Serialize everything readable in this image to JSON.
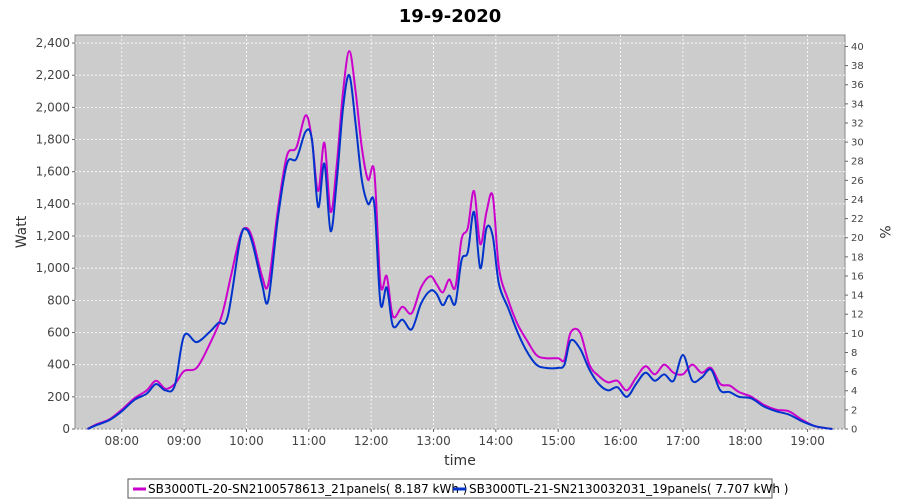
{
  "chart_data": {
    "type": "line",
    "title": "19-9-2020",
    "xlabel": "time",
    "ylabel": "Watt",
    "y2label": "%",
    "xlim": [
      7.25,
      19.6
    ],
    "ylim": [
      0,
      2450
    ],
    "y2lim": [
      0,
      41.2
    ],
    "x_tick_labels": [
      "08:00",
      "09:00",
      "10:00",
      "11:00",
      "12:00",
      "13:00",
      "14:00",
      "15:00",
      "16:00",
      "17:00",
      "18:00",
      "19:00"
    ],
    "y_tick_labels": [
      "0",
      "200",
      "400",
      "600",
      "800",
      "1,000",
      "1,200",
      "1,400",
      "1,600",
      "1,800",
      "2,000",
      "2,200",
      "2,400"
    ],
    "y2_tick_labels": [
      "0",
      "2",
      "4",
      "6",
      "8",
      "10",
      "12",
      "14",
      "16",
      "18",
      "20",
      "22",
      "24",
      "26",
      "28",
      "30",
      "32",
      "34",
      "36",
      "38",
      "40"
    ],
    "grid": true,
    "background": "#cccccc",
    "legend_position": "bottom",
    "series": [
      {
        "name": "SB3000TL-20-SN2100578613_21panels( 8.187 kWh )",
        "color": "#cc00cc",
        "x": [
          7.45,
          7.6,
          7.8,
          8.0,
          8.2,
          8.4,
          8.55,
          8.7,
          8.85,
          9.0,
          9.2,
          9.4,
          9.6,
          9.75,
          9.9,
          10.0,
          10.1,
          10.25,
          10.35,
          10.5,
          10.65,
          10.8,
          10.95,
          11.05,
          11.15,
          11.25,
          11.35,
          11.45,
          11.55,
          11.65,
          11.75,
          11.85,
          11.95,
          12.05,
          12.15,
          12.25,
          12.35,
          12.5,
          12.65,
          12.8,
          12.95,
          13.05,
          13.15,
          13.25,
          13.35,
          13.45,
          13.55,
          13.65,
          13.75,
          13.85,
          13.95,
          14.05,
          14.2,
          14.35,
          14.5,
          14.65,
          14.8,
          15.0,
          15.1,
          15.2,
          15.35,
          15.5,
          15.65,
          15.8,
          15.95,
          16.1,
          16.25,
          16.4,
          16.55,
          16.7,
          16.85,
          17.0,
          17.15,
          17.3,
          17.45,
          17.6,
          17.75,
          17.9,
          18.1,
          18.3,
          18.5,
          18.7,
          18.9,
          19.1,
          19.3,
          19.4
        ],
        "y": [
          0,
          30,
          60,
          120,
          190,
          240,
          300,
          250,
          280,
          360,
          380,
          520,
          700,
          950,
          1200,
          1250,
          1180,
          950,
          900,
          1350,
          1700,
          1750,
          1950,
          1800,
          1480,
          1780,
          1350,
          1650,
          2100,
          2350,
          2100,
          1750,
          1550,
          1600,
          900,
          950,
          700,
          760,
          720,
          880,
          950,
          900,
          850,
          930,
          880,
          1180,
          1250,
          1480,
          1150,
          1350,
          1450,
          1000,
          800,
          650,
          550,
          460,
          440,
          440,
          430,
          600,
          600,
          400,
          330,
          290,
          300,
          240,
          320,
          390,
          340,
          400,
          350,
          340,
          400,
          350,
          380,
          280,
          270,
          230,
          200,
          150,
          120,
          110,
          60,
          20,
          5,
          0
        ]
      },
      {
        "name": "SB3000TL-21-SN2130032031_19panels( 7.707 kWh )",
        "color": "#0033cc",
        "x": [
          7.45,
          7.6,
          7.8,
          8.0,
          8.2,
          8.4,
          8.55,
          8.7,
          8.85,
          9.0,
          9.2,
          9.4,
          9.55,
          9.7,
          9.9,
          10.0,
          10.1,
          10.25,
          10.35,
          10.5,
          10.65,
          10.8,
          10.95,
          11.05,
          11.15,
          11.25,
          11.35,
          11.45,
          11.55,
          11.65,
          11.75,
          11.85,
          11.95,
          12.05,
          12.15,
          12.25,
          12.35,
          12.5,
          12.65,
          12.8,
          12.95,
          13.05,
          13.15,
          13.25,
          13.35,
          13.45,
          13.55,
          13.65,
          13.75,
          13.85,
          13.95,
          14.05,
          14.2,
          14.35,
          14.5,
          14.65,
          14.8,
          15.0,
          15.1,
          15.2,
          15.35,
          15.5,
          15.65,
          15.8,
          15.95,
          16.1,
          16.25,
          16.4,
          16.55,
          16.7,
          16.85,
          17.0,
          17.15,
          17.3,
          17.45,
          17.6,
          17.75,
          17.9,
          18.1,
          18.3,
          18.5,
          18.7,
          18.9,
          19.1,
          19.3,
          19.4
        ],
        "y": [
          0,
          25,
          55,
          110,
          180,
          220,
          280,
          240,
          270,
          580,
          540,
          600,
          660,
          700,
          1180,
          1240,
          1150,
          900,
          800,
          1300,
          1650,
          1680,
          1850,
          1800,
          1380,
          1650,
          1230,
          1550,
          2000,
          2200,
          1900,
          1550,
          1400,
          1400,
          780,
          880,
          640,
          680,
          620,
          780,
          860,
          840,
          770,
          830,
          780,
          1050,
          1100,
          1350,
          1000,
          1250,
          1200,
          900,
          750,
          600,
          480,
          400,
          380,
          380,
          400,
          550,
          500,
          370,
          280,
          240,
          260,
          200,
          280,
          350,
          300,
          340,
          300,
          460,
          300,
          320,
          370,
          240,
          230,
          200,
          190,
          140,
          110,
          90,
          50,
          20,
          5,
          0
        ]
      }
    ]
  }
}
